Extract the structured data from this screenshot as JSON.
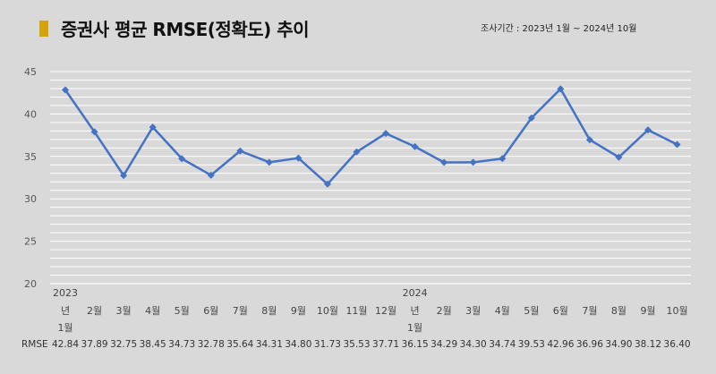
{
  "header": {
    "title": "증권사 평균 RMSE(정확도) 추이",
    "period": "조사기간 : 2023년 1월 ~ 2024년 10월",
    "marker_color": "#d4a20a"
  },
  "chart_data": {
    "type": "line",
    "title": "증권사 평균 RMSE(정확도) 추이",
    "year_labels": [
      {
        "index": 0,
        "label": "2023"
      },
      {
        "index": 12,
        "label": "2024"
      }
    ],
    "categories": [
      [
        "년",
        "1월"
      ],
      [
        "2월"
      ],
      [
        "3월"
      ],
      [
        "4월"
      ],
      [
        "5월"
      ],
      [
        "6월"
      ],
      [
        "7월"
      ],
      [
        "8월"
      ],
      [
        "9월"
      ],
      [
        "10월"
      ],
      [
        "11월"
      ],
      [
        "12월"
      ],
      [
        "년",
        "1월"
      ],
      [
        "2월"
      ],
      [
        "3월"
      ],
      [
        "4월"
      ],
      [
        "5월"
      ],
      [
        "6월"
      ],
      [
        "7월"
      ],
      [
        "8월"
      ],
      [
        "9월"
      ],
      [
        "10월"
      ]
    ],
    "series": [
      {
        "name": "RMSE",
        "values": [
          42.84,
          37.89,
          32.75,
          38.45,
          34.73,
          32.78,
          35.64,
          34.31,
          34.8,
          31.73,
          35.53,
          37.71,
          36.15,
          34.29,
          34.3,
          34.74,
          39.53,
          42.96,
          36.96,
          34.9,
          38.12,
          36.4
        ],
        "labels": [
          "42.84",
          "37.89",
          "32.75",
          "38.45",
          "34.73",
          "32.78",
          "35.64",
          "34.31",
          "34.80",
          "31.73",
          "35.53",
          "37.71",
          "36.15",
          "34.29",
          "34.30",
          "34.74",
          "39.53",
          "42.96",
          "36.96",
          "34.90",
          "38.12",
          "36.40"
        ],
        "color": "#4472c4"
      }
    ],
    "ylim": [
      20,
      45
    ],
    "yticks": [
      "20",
      "25",
      "30",
      "35",
      "40",
      "45"
    ],
    "grid": true,
    "legend": "none"
  }
}
